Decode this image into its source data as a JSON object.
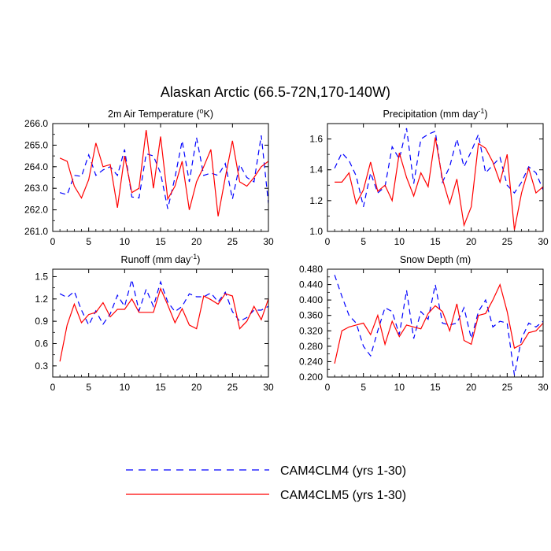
{
  "title": "Alaskan Arctic (66.5-72N,170-140W)",
  "legend": [
    {
      "label": "CAM4CLM4 (yrs 1-30)",
      "color": "#0000ff",
      "style": "dashed"
    },
    {
      "label": "CAM4CLM5 (yrs 1-30)",
      "color": "#ff0000",
      "style": "solid"
    }
  ],
  "chart_data": [
    {
      "type": "line",
      "title": "2m Air Temperature (",
      "title_sup": "o",
      "title_tail": "K)",
      "xlim": [
        0,
        30
      ],
      "ylim": [
        261,
        266
      ],
      "xticks": [
        0,
        5,
        10,
        15,
        20,
        25,
        30
      ],
      "yticks": [
        261,
        262,
        263,
        264,
        265,
        266
      ],
      "ytick_decimals": 1,
      "y_axis_side": "left",
      "x": [
        1,
        2,
        3,
        4,
        5,
        6,
        7,
        8,
        9,
        10,
        11,
        12,
        13,
        14,
        15,
        16,
        17,
        18,
        19,
        20,
        21,
        22,
        23,
        24,
        25,
        26,
        27,
        28,
        29,
        30
      ],
      "series": [
        {
          "name": "CAM4CLM4 (yrs 1-30)",
          "color": "#0000ff",
          "style": "dashed",
          "values": [
            262.8,
            262.7,
            263.6,
            263.55,
            264.55,
            263.6,
            263.85,
            264.0,
            263.6,
            264.8,
            262.6,
            262.55,
            264.6,
            264.5,
            263.7,
            262.05,
            263.5,
            265.2,
            263.3,
            265.35,
            263.6,
            263.7,
            263.6,
            264.15,
            262.5,
            264.1,
            263.5,
            263.3,
            265.45,
            262.3
          ]
        },
        {
          "name": "CAM4CLM5 (yrs 1-30)",
          "color": "#ff0000",
          "style": "solid",
          "values": [
            264.4,
            264.25,
            263.1,
            262.55,
            263.4,
            265.1,
            264.0,
            264.1,
            262.1,
            264.5,
            262.8,
            263.0,
            265.7,
            263.0,
            265.4,
            262.5,
            263.1,
            264.25,
            262.0,
            263.3,
            264.0,
            264.8,
            261.7,
            263.5,
            265.2,
            263.3,
            263.1,
            263.5,
            264.0,
            264.25
          ]
        }
      ]
    },
    {
      "type": "line",
      "title": "Precipitation (mm day",
      "title_sup": "-1",
      "title_tail": ")",
      "xlim": [
        0,
        30
      ],
      "ylim": [
        1.0,
        1.7
      ],
      "xticks": [
        0,
        5,
        10,
        15,
        20,
        25,
        30
      ],
      "yticks": [
        1.0,
        1.2,
        1.4,
        1.6
      ],
      "ytick_decimals": 1,
      "y_axis_side": "right",
      "x": [
        1,
        2,
        3,
        4,
        5,
        6,
        7,
        8,
        9,
        10,
        11,
        12,
        13,
        14,
        15,
        16,
        17,
        18,
        19,
        20,
        21,
        22,
        23,
        24,
        25,
        26,
        27,
        28,
        29,
        30
      ],
      "series": [
        {
          "name": "CAM4CLM4 (yrs 1-30)",
          "color": "#0000ff",
          "style": "dashed",
          "values": [
            1.41,
            1.51,
            1.46,
            1.36,
            1.16,
            1.38,
            1.25,
            1.29,
            1.55,
            1.47,
            1.67,
            1.31,
            1.6,
            1.63,
            1.65,
            1.32,
            1.42,
            1.6,
            1.42,
            1.52,
            1.63,
            1.38,
            1.43,
            1.48,
            1.3,
            1.25,
            1.32,
            1.42,
            1.38,
            1.27
          ]
        },
        {
          "name": "CAM4CLM5 (yrs 1-30)",
          "color": "#ff0000",
          "style": "solid",
          "values": [
            1.32,
            1.32,
            1.38,
            1.18,
            1.27,
            1.45,
            1.26,
            1.3,
            1.2,
            1.51,
            1.35,
            1.23,
            1.38,
            1.29,
            1.61,
            1.34,
            1.18,
            1.34,
            1.04,
            1.16,
            1.57,
            1.54,
            1.45,
            1.32,
            1.5,
            1.01,
            1.25,
            1.41,
            1.25,
            1.29
          ]
        }
      ]
    },
    {
      "type": "line",
      "title": "Runoff (mm day",
      "title_sup": "-1",
      "title_tail": ")",
      "xlim": [
        0,
        30
      ],
      "ylim": [
        0.15,
        1.6
      ],
      "xticks": [
        0,
        5,
        10,
        15,
        20,
        25,
        30
      ],
      "yticks": [
        0.3,
        0.6,
        0.9,
        1.2,
        1.5
      ],
      "ytick_decimals": 1,
      "y_axis_side": "left",
      "x": [
        1,
        2,
        3,
        4,
        5,
        6,
        7,
        8,
        9,
        10,
        11,
        12,
        13,
        14,
        15,
        16,
        17,
        18,
        19,
        20,
        21,
        22,
        23,
        24,
        25,
        26,
        27,
        28,
        29,
        30
      ],
      "series": [
        {
          "name": "CAM4CLM4 (yrs 1-30)",
          "color": "#0000ff",
          "style": "dashed",
          "values": [
            1.27,
            1.22,
            1.3,
            1.05,
            0.85,
            1.04,
            0.86,
            1.0,
            1.25,
            1.1,
            1.46,
            1.04,
            1.33,
            1.1,
            1.43,
            1.16,
            1.03,
            1.1,
            1.27,
            1.23,
            1.23,
            1.28,
            1.16,
            1.29,
            1.03,
            0.9,
            0.95,
            1.05,
            1.05,
            1.1
          ]
        },
        {
          "name": "CAM4CLM5 (yrs 1-30)",
          "color": "#ff0000",
          "style": "solid",
          "values": [
            0.36,
            0.85,
            1.13,
            0.88,
            0.99,
            1.02,
            1.15,
            0.96,
            1.06,
            1.06,
            1.2,
            1.02,
            1.02,
            1.02,
            1.34,
            1.12,
            0.88,
            1.07,
            0.85,
            0.8,
            1.24,
            1.19,
            1.13,
            1.27,
            1.24,
            0.8,
            0.9,
            1.1,
            0.92,
            1.2
          ]
        }
      ]
    },
    {
      "type": "line",
      "title": "Snow Depth (m)",
      "title_sup": "",
      "title_tail": "",
      "xlim": [
        0,
        30
      ],
      "ylim": [
        0.2,
        0.48
      ],
      "xticks": [
        0,
        5,
        10,
        15,
        20,
        25,
        30
      ],
      "yticks": [
        0.2,
        0.24,
        0.28,
        0.32,
        0.36,
        0.4,
        0.44,
        0.48
      ],
      "ytick_decimals": 3,
      "y_axis_side": "left",
      "x": [
        1,
        2,
        3,
        4,
        5,
        6,
        7,
        8,
        9,
        10,
        11,
        12,
        13,
        14,
        15,
        16,
        17,
        18,
        19,
        20,
        21,
        22,
        23,
        24,
        25,
        26,
        27,
        28,
        29,
        30
      ],
      "series": [
        {
          "name": "CAM4CLM4 (yrs 1-30)",
          "color": "#0000ff",
          "style": "dashed",
          "values": [
            0.465,
            0.41,
            0.36,
            0.34,
            0.28,
            0.255,
            0.32,
            0.38,
            0.37,
            0.31,
            0.425,
            0.3,
            0.37,
            0.35,
            0.44,
            0.34,
            0.335,
            0.34,
            0.38,
            0.3,
            0.37,
            0.4,
            0.33,
            0.345,
            0.34,
            0.205,
            0.3,
            0.34,
            0.33,
            0.345
          ]
        },
        {
          "name": "CAM4CLM5 (yrs 1-30)",
          "color": "#ff0000",
          "style": "solid",
          "values": [
            0.235,
            0.32,
            0.33,
            0.335,
            0.34,
            0.31,
            0.36,
            0.285,
            0.345,
            0.305,
            0.335,
            0.33,
            0.325,
            0.365,
            0.385,
            0.37,
            0.32,
            0.39,
            0.295,
            0.285,
            0.36,
            0.365,
            0.4,
            0.44,
            0.37,
            0.275,
            0.285,
            0.315,
            0.32,
            0.34
          ]
        }
      ]
    }
  ]
}
